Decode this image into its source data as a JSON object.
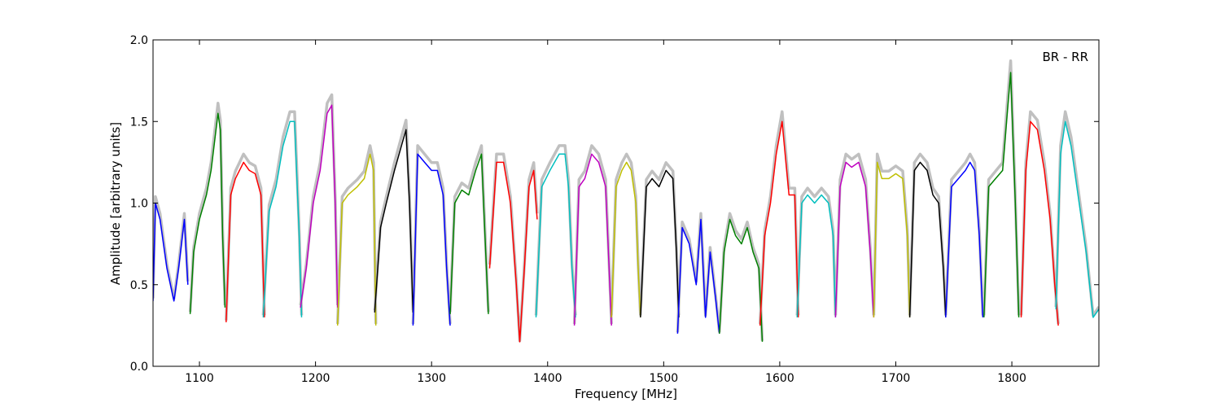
{
  "chart_data": {
    "type": "line",
    "title": "",
    "xlabel": "Frequency [MHz]",
    "ylabel": "Amplitude [arbitrary units]",
    "xlim": [
      1060,
      1875
    ],
    "ylim": [
      0.0,
      2.0
    ],
    "xticks": [
      1100,
      1200,
      1300,
      1400,
      1500,
      1600,
      1700,
      1800
    ],
    "xtick_labels": [
      "1100",
      "1200",
      "1300",
      "1400",
      "1500",
      "1600",
      "1700",
      "1800"
    ],
    "yticks": [
      0.0,
      0.5,
      1.0,
      1.5,
      2.0
    ],
    "ytick_labels": [
      "0.0",
      "0.5",
      "1.0",
      "1.5",
      "2.0"
    ],
    "grid": false,
    "annotation": "BR - RR",
    "background_color": "#c0c0c0",
    "band_colors": [
      "#0000ff",
      "#008000",
      "#ff0000",
      "#00bfbf",
      "#bf00bf",
      "#bfbf00",
      "#000000"
    ],
    "bands": [
      {
        "color": "#0000ff",
        "x": [
          1060,
          1062,
          1066,
          1072,
          1078,
          1082,
          1087,
          1090
        ],
        "y": [
          0.4,
          1.0,
          0.9,
          0.6,
          0.4,
          0.6,
          0.9,
          0.5
        ]
      },
      {
        "color": "#008000",
        "x": [
          1092,
          1095,
          1100,
          1106,
          1110,
          1116,
          1118,
          1120,
          1122
        ],
        "y": [
          0.32,
          0.7,
          0.9,
          1.05,
          1.2,
          1.55,
          1.45,
          0.8,
          0.36
        ]
      },
      {
        "color": "#ff0000",
        "x": [
          1123,
          1127,
          1131,
          1138,
          1143,
          1148,
          1153,
          1156
        ],
        "y": [
          0.27,
          1.05,
          1.15,
          1.25,
          1.2,
          1.18,
          1.05,
          0.3
        ]
      },
      {
        "color": "#00bfbf",
        "x": [
          1155,
          1160,
          1166,
          1172,
          1178,
          1182,
          1186,
          1188
        ],
        "y": [
          0.3,
          0.95,
          1.1,
          1.35,
          1.5,
          1.5,
          0.8,
          0.3
        ]
      },
      {
        "color": "#bf00bf",
        "x": [
          1187,
          1192,
          1198,
          1204,
          1210,
          1214,
          1217,
          1219
        ],
        "y": [
          0.36,
          0.6,
          1.0,
          1.2,
          1.55,
          1.6,
          1.0,
          0.36
        ]
      },
      {
        "color": "#bfbf00",
        "x": [
          1219,
          1223,
          1228,
          1236,
          1242,
          1247,
          1250,
          1252
        ],
        "y": [
          0.25,
          1.0,
          1.05,
          1.1,
          1.15,
          1.3,
          1.2,
          0.25
        ]
      },
      {
        "color": "#000000",
        "x": [
          1251,
          1256,
          1261,
          1268,
          1274,
          1278,
          1281,
          1284
        ],
        "y": [
          0.33,
          0.85,
          1.0,
          1.2,
          1.35,
          1.45,
          1.0,
          0.33
        ]
      },
      {
        "color": "#0000ff",
        "x": [
          1284,
          1288,
          1294,
          1300,
          1305,
          1310,
          1313,
          1316
        ],
        "y": [
          0.25,
          1.3,
          1.25,
          1.2,
          1.2,
          1.05,
          0.6,
          0.25
        ]
      },
      {
        "color": "#008000",
        "x": [
          1316,
          1320,
          1326,
          1332,
          1338,
          1343,
          1346,
          1349
        ],
        "y": [
          0.32,
          1.0,
          1.08,
          1.05,
          1.2,
          1.3,
          0.8,
          0.32
        ]
      },
      {
        "color": "#ff0000",
        "x": [
          1350,
          1356,
          1362,
          1368,
          1373,
          1376,
          1380,
          1384,
          1388,
          1391
        ],
        "y": [
          0.6,
          1.25,
          1.25,
          1.0,
          0.5,
          0.15,
          0.6,
          1.1,
          1.2,
          0.9
        ]
      },
      {
        "color": "#00bfbf",
        "x": [
          1390,
          1395,
          1402,
          1410,
          1415,
          1418,
          1421,
          1424
        ],
        "y": [
          0.3,
          1.1,
          1.2,
          1.3,
          1.3,
          1.1,
          0.6,
          0.3
        ]
      },
      {
        "color": "#bf00bf",
        "x": [
          1423,
          1427,
          1432,
          1438,
          1444,
          1450,
          1453,
          1455
        ],
        "y": [
          0.25,
          1.1,
          1.15,
          1.3,
          1.25,
          1.1,
          0.6,
          0.25
        ]
      },
      {
        "color": "#bfbf00",
        "x": [
          1455,
          1459,
          1464,
          1468,
          1472,
          1476,
          1478,
          1480
        ],
        "y": [
          0.3,
          1.1,
          1.2,
          1.25,
          1.2,
          1.0,
          0.6,
          0.3
        ]
      },
      {
        "color": "#000000",
        "x": [
          1480,
          1485,
          1490,
          1496,
          1502,
          1508,
          1511,
          1513
        ],
        "y": [
          0.3,
          1.1,
          1.15,
          1.1,
          1.2,
          1.15,
          0.7,
          0.3
        ]
      },
      {
        "color": "#0000ff",
        "x": [
          1512,
          1516,
          1522,
          1528,
          1532,
          1536,
          1540,
          1545,
          1548
        ],
        "y": [
          0.2,
          0.85,
          0.75,
          0.5,
          0.9,
          0.3,
          0.7,
          0.4,
          0.2
        ]
      },
      {
        "color": "#008000",
        "x": [
          1548,
          1552,
          1557,
          1562,
          1567,
          1572,
          1577,
          1582,
          1585
        ],
        "y": [
          0.2,
          0.7,
          0.9,
          0.8,
          0.75,
          0.85,
          0.7,
          0.6,
          0.15
        ]
      },
      {
        "color": "#ff0000",
        "x": [
          1583,
          1587,
          1592,
          1597,
          1602,
          1608,
          1613,
          1616
        ],
        "y": [
          0.25,
          0.8,
          1.0,
          1.3,
          1.5,
          1.05,
          1.05,
          0.3
        ]
      },
      {
        "color": "#00bfbf",
        "x": [
          1615,
          1619,
          1624,
          1630,
          1636,
          1642,
          1646,
          1648
        ],
        "y": [
          0.3,
          1.0,
          1.05,
          1.0,
          1.05,
          1.0,
          0.8,
          0.3
        ]
      },
      {
        "color": "#bf00bf",
        "x": [
          1648,
          1652,
          1657,
          1662,
          1668,
          1674,
          1678,
          1681
        ],
        "y": [
          0.3,
          1.1,
          1.25,
          1.22,
          1.25,
          1.1,
          0.7,
          0.3
        ]
      },
      {
        "color": "#bfbf00",
        "x": [
          1681,
          1684,
          1688,
          1694,
          1700,
          1706,
          1710,
          1712
        ],
        "y": [
          0.3,
          1.25,
          1.15,
          1.15,
          1.18,
          1.15,
          0.8,
          0.3
        ]
      },
      {
        "color": "#000000",
        "x": [
          1712,
          1716,
          1721,
          1727,
          1732,
          1737,
          1741,
          1743
        ],
        "y": [
          0.3,
          1.2,
          1.25,
          1.2,
          1.05,
          1.0,
          0.6,
          0.3
        ]
      },
      {
        "color": "#0000ff",
        "x": [
          1743,
          1748,
          1754,
          1760,
          1764,
          1768,
          1772,
          1775
        ],
        "y": [
          0.3,
          1.1,
          1.15,
          1.2,
          1.25,
          1.2,
          0.8,
          0.3
        ]
      },
      {
        "color": "#008000",
        "x": [
          1776,
          1780,
          1786,
          1792,
          1796,
          1799,
          1803,
          1806
        ],
        "y": [
          0.3,
          1.1,
          1.15,
          1.2,
          1.55,
          1.8,
          1.0,
          0.3
        ]
      },
      {
        "color": "#ff0000",
        "x": [
          1808,
          1812,
          1816,
          1822,
          1828,
          1833,
          1837,
          1840
        ],
        "y": [
          0.3,
          1.2,
          1.5,
          1.45,
          1.2,
          0.9,
          0.5,
          0.25
        ]
      },
      {
        "color": "#00bfbf",
        "x": [
          1838,
          1842,
          1846,
          1851,
          1856,
          1860,
          1864,
          1870,
          1875
        ],
        "y": [
          0.35,
          1.3,
          1.5,
          1.35,
          1.1,
          0.9,
          0.7,
          0.3,
          0.35
        ]
      }
    ]
  }
}
